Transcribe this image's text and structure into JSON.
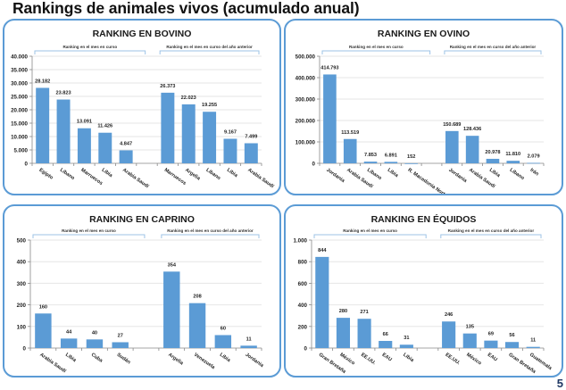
{
  "page": {
    "title": "Rankings de animales vivos (acumulado anual)",
    "page_number": "5",
    "group_labels": {
      "current": "Ranking en el mes en curso",
      "previous": "Ranking en el mes en curso del año anterior"
    },
    "colors": {
      "bar": "#5b9bd5",
      "frame": "#5b9bd5",
      "bracket": "#9dc3e6",
      "grid": "#e6e6e6"
    }
  },
  "chart_data": [
    {
      "id": "bovino",
      "type": "bar",
      "title": "RANKING EN BOVINO",
      "xlabel": "",
      "ylabel": "",
      "ylim": [
        0,
        40000
      ],
      "yticks": [
        0,
        5000,
        10000,
        15000,
        20000,
        25000,
        30000,
        35000,
        40000
      ],
      "ytick_labels": [
        "0",
        "5.000",
        "10.000",
        "15.000",
        "20.000",
        "25.000",
        "30.000",
        "35.000",
        "40.000"
      ],
      "grid": true,
      "groups": [
        {
          "label": "Ranking en el mes en curso",
          "categories": [
            "Egipto",
            "Líbano",
            "Marruecos",
            "Libia",
            "Arabia Saudí"
          ],
          "values": [
            28182,
            23823,
            13091,
            11426,
            4847
          ],
          "value_labels": [
            "28.182",
            "23.823",
            "13.091",
            "11.426",
            "4.847"
          ]
        },
        {
          "label": "Ranking en el mes en curso del año anterior",
          "categories": [
            "Marruecos",
            "Argelia",
            "Líbano",
            "Libia",
            "Arabia Saudí"
          ],
          "values": [
            26373,
            22023,
            19255,
            9167,
            7499
          ],
          "value_labels": [
            "26.373",
            "22.023",
            "19.255",
            "9.167",
            "7.499"
          ]
        }
      ]
    },
    {
      "id": "ovino",
      "type": "bar",
      "title": "RANKING EN OVINO",
      "xlabel": "",
      "ylabel": "",
      "ylim": [
        0,
        500000
      ],
      "yticks": [
        0,
        100000,
        200000,
        300000,
        400000,
        500000
      ],
      "ytick_labels": [
        "0",
        "100.000",
        "200.000",
        "300.000",
        "400.000",
        "500.000"
      ],
      "grid": true,
      "groups": [
        {
          "label": "Ranking en el mes en curso",
          "categories": [
            "Jordania",
            "Arabia Saudí",
            "Líbano",
            "Libia",
            "R. Macedonia Norte"
          ],
          "values": [
            414793,
            113519,
            7853,
            6891,
            152
          ],
          "value_labels": [
            "414.793",
            "113.519",
            "7.853",
            "6.891",
            "152"
          ]
        },
        {
          "label": "Ranking en el mes en curso del año anterior",
          "categories": [
            "Jordania",
            "Arabia Saudí",
            "Libia",
            "Líbano",
            "Irán"
          ],
          "values": [
            150689,
            128436,
            20978,
            11810,
            2079
          ],
          "value_labels": [
            "150.689",
            "128.436",
            "20.978",
            "11.810",
            "2.079"
          ]
        }
      ]
    },
    {
      "id": "caprino",
      "type": "bar",
      "title": "RANKING EN CAPRINO",
      "xlabel": "",
      "ylabel": "",
      "ylim": [
        0,
        500
      ],
      "yticks": [
        0,
        100,
        200,
        300,
        400,
        500
      ],
      "ytick_labels": [
        "0",
        "100",
        "200",
        "300",
        "400",
        "500"
      ],
      "grid": true,
      "groups": [
        {
          "label": "Ranking en el mes en curso",
          "categories": [
            "Arabia Saudí",
            "Libia",
            "Cuba",
            "Sudán"
          ],
          "values": [
            160,
            44,
            40,
            27
          ],
          "value_labels": [
            "160",
            "44",
            "40",
            "27"
          ]
        },
        {
          "label": "Ranking en el mes en curso del año anterior",
          "categories": [
            "Argelia",
            "Venezuela",
            "Libia",
            "Jordania"
          ],
          "values": [
            354,
            208,
            60,
            11
          ],
          "value_labels": [
            "354",
            "208",
            "60",
            "11"
          ]
        }
      ]
    },
    {
      "id": "equidos",
      "type": "bar",
      "title": "RANKING EN ÉQUIDOS",
      "xlabel": "",
      "ylabel": "",
      "ylim": [
        0,
        1000
      ],
      "yticks": [
        0,
        200,
        400,
        600,
        800,
        1000
      ],
      "ytick_labels": [
        "0",
        "200",
        "400",
        "600",
        "800",
        "1.000"
      ],
      "grid": true,
      "groups": [
        {
          "label": "Ranking en el mes en curso",
          "categories": [
            "Gran Bretaña",
            "México",
            "EE.UU.",
            "EAU",
            "Libia"
          ],
          "values": [
            844,
            280,
            271,
            66,
            31
          ],
          "value_labels": [
            "844",
            "280",
            "271",
            "66",
            "31"
          ]
        },
        {
          "label": "Ranking en el mes en curso del año anterior",
          "categories": [
            "EE.UU.",
            "México",
            "EAU",
            "Gran Bretaña",
            "Guatemala"
          ],
          "values": [
            246,
            135,
            69,
            56,
            11
          ],
          "value_labels": [
            "246",
            "135",
            "69",
            "56",
            "11"
          ]
        }
      ]
    }
  ]
}
